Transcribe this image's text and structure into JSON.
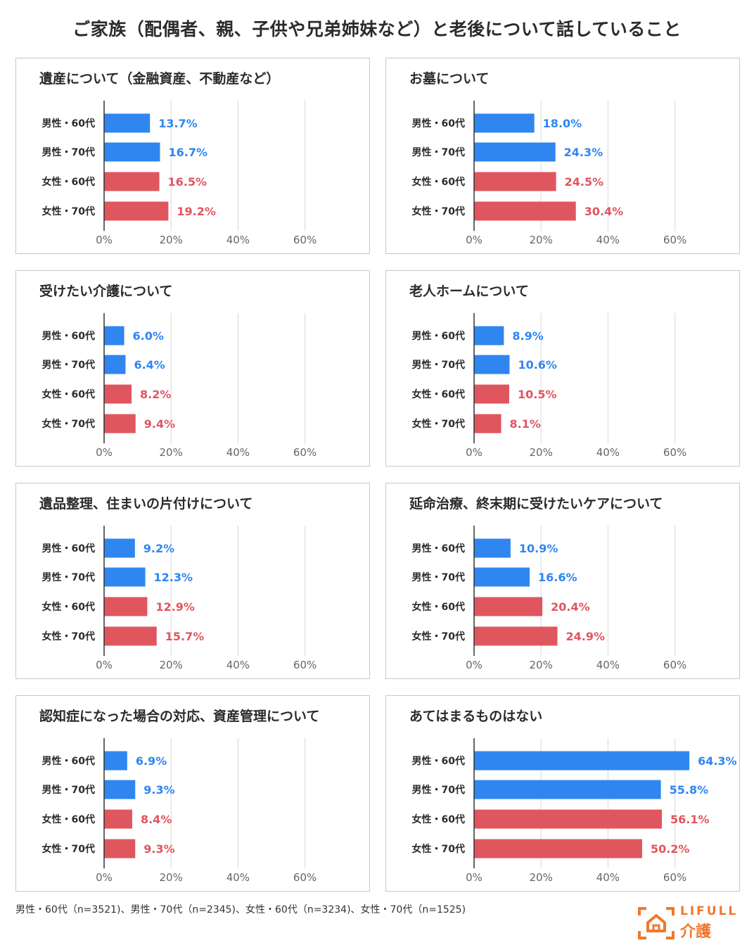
{
  "title": "ご家族（配偶者、親、子供や兄弟姉妹など）と老後について話していること",
  "footnote": "男性・60代（n=3521)、男性・70代（n=2345)、女性・60代（n=3234)、女性・70代（n=1525)",
  "logo": {
    "word": "LIFULL",
    "sub": "介護",
    "icon": "house-frame-icon"
  },
  "colors": {
    "male": "#2f86f0",
    "female": "#e0565f",
    "grid": "#d9d9d9",
    "axis": "#333333",
    "label_male": "#2f86f0",
    "label_female": "#e0565f"
  },
  "chart_data": [
    {
      "type": "bar",
      "orientation": "horizontal",
      "title": "遺産について（金融資産、不動産など）",
      "categories": [
        "男性・60代",
        "男性・70代",
        "女性・60代",
        "女性・70代"
      ],
      "values": [
        13.7,
        16.7,
        16.5,
        19.2
      ],
      "labels": [
        "13.7%",
        "16.7%",
        "16.5%",
        "19.2%"
      ],
      "xticks": [
        "0%",
        "20%",
        "40%",
        "60%"
      ],
      "xlim": [
        0,
        66
      ]
    },
    {
      "type": "bar",
      "orientation": "horizontal",
      "title": "お墓について",
      "categories": [
        "男性・60代",
        "男性・70代",
        "女性・60代",
        "女性・70代"
      ],
      "values": [
        18.0,
        24.3,
        24.5,
        30.4
      ],
      "labels": [
        "18.0%",
        "24.3%",
        "24.5%",
        "30.4%"
      ],
      "xticks": [
        "0%",
        "20%",
        "40%",
        "60%"
      ],
      "xlim": [
        0,
        66
      ]
    },
    {
      "type": "bar",
      "orientation": "horizontal",
      "title": "受けたい介護について",
      "categories": [
        "男性・60代",
        "男性・70代",
        "女性・60代",
        "女性・70代"
      ],
      "values": [
        6.0,
        6.4,
        8.2,
        9.4
      ],
      "labels": [
        "6.0%",
        "6.4%",
        "8.2%",
        "9.4%"
      ],
      "xticks": [
        "0%",
        "20%",
        "40%",
        "60%"
      ],
      "xlim": [
        0,
        66
      ]
    },
    {
      "type": "bar",
      "orientation": "horizontal",
      "title": "老人ホームについて",
      "categories": [
        "男性・60代",
        "男性・70代",
        "女性・60代",
        "女性・70代"
      ],
      "values": [
        8.9,
        10.6,
        10.5,
        8.1
      ],
      "labels": [
        "8.9%",
        "10.6%",
        "10.5%",
        "8.1%"
      ],
      "xticks": [
        "0%",
        "20%",
        "40%",
        "60%"
      ],
      "xlim": [
        0,
        66
      ]
    },
    {
      "type": "bar",
      "orientation": "horizontal",
      "title": "遺品整理、住まいの片付けについて",
      "categories": [
        "男性・60代",
        "男性・70代",
        "女性・60代",
        "女性・70代"
      ],
      "values": [
        9.2,
        12.3,
        12.9,
        15.7
      ],
      "labels": [
        "9.2%",
        "12.3%",
        "12.9%",
        "15.7%"
      ],
      "xticks": [
        "0%",
        "20%",
        "40%",
        "60%"
      ],
      "xlim": [
        0,
        66
      ]
    },
    {
      "type": "bar",
      "orientation": "horizontal",
      "title": "延命治療、終末期に受けたいケアについて",
      "categories": [
        "男性・60代",
        "男性・70代",
        "女性・60代",
        "女性・70代"
      ],
      "values": [
        10.9,
        16.6,
        20.4,
        24.9
      ],
      "labels": [
        "10.9%",
        "16.6%",
        "20.4%",
        "24.9%"
      ],
      "xticks": [
        "0%",
        "20%",
        "40%",
        "60%"
      ],
      "xlim": [
        0,
        66
      ]
    },
    {
      "type": "bar",
      "orientation": "horizontal",
      "title": "認知症になった場合の対応、資産管理について",
      "categories": [
        "男性・60代",
        "男性・70代",
        "女性・60代",
        "女性・70代"
      ],
      "values": [
        6.9,
        9.3,
        8.4,
        9.3
      ],
      "labels": [
        "6.9%",
        "9.3%",
        "8.4%",
        "9.3%"
      ],
      "xticks": [
        "0%",
        "20%",
        "40%",
        "60%"
      ],
      "xlim": [
        0,
        66
      ]
    },
    {
      "type": "bar",
      "orientation": "horizontal",
      "title": "あてはまるものはない",
      "categories": [
        "男性・60代",
        "男性・70代",
        "女性・60代",
        "女性・70代"
      ],
      "values": [
        64.3,
        55.8,
        56.1,
        50.2
      ],
      "labels": [
        "64.3%",
        "55.8%",
        "56.1%",
        "50.2%"
      ],
      "xticks": [
        "0%",
        "20%",
        "40%",
        "60%"
      ],
      "xlim": [
        0,
        66
      ]
    }
  ]
}
